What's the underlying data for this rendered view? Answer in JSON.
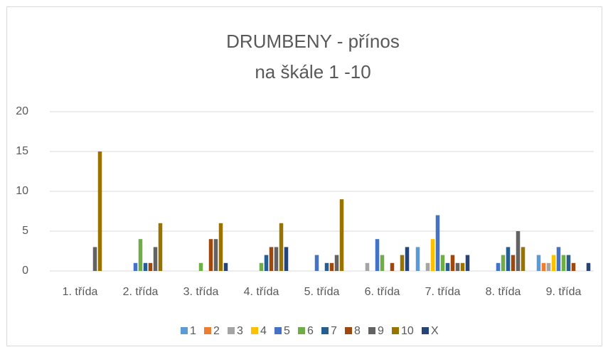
{
  "chart_data": {
    "type": "bar",
    "title": "DRUMBENY - přínos",
    "subtitle": "na škále 1 -10",
    "categories": [
      "1. třída",
      "2. třída",
      "3. třída",
      "4. třída",
      "5. třída",
      "6. třída",
      "7. třída",
      "8. třída",
      "9. třída"
    ],
    "series": [
      {
        "name": "1",
        "color": "#5b9bd5",
        "values": [
          0,
          0,
          0,
          0,
          0,
          0,
          3,
          0,
          2
        ]
      },
      {
        "name": "2",
        "color": "#ed7d31",
        "values": [
          0,
          0,
          0,
          0,
          0,
          0,
          0,
          0,
          1
        ]
      },
      {
        "name": "3",
        "color": "#a5a5a5",
        "values": [
          0,
          0,
          0,
          0,
          0,
          1,
          1,
          0,
          1
        ]
      },
      {
        "name": "4",
        "color": "#ffc000",
        "values": [
          0,
          0,
          0,
          0,
          0,
          0,
          4,
          0,
          2
        ]
      },
      {
        "name": "5",
        "color": "#4472c4",
        "values": [
          0,
          1,
          0,
          0,
          2,
          4,
          7,
          1,
          3
        ]
      },
      {
        "name": "6",
        "color": "#70ad47",
        "values": [
          0,
          4,
          1,
          1,
          0,
          2,
          2,
          2,
          2
        ]
      },
      {
        "name": "7",
        "color": "#255e91",
        "values": [
          0,
          1,
          0,
          2,
          1,
          0,
          1,
          3,
          2
        ]
      },
      {
        "name": "8",
        "color": "#9e480e",
        "values": [
          0,
          1,
          4,
          3,
          1,
          1,
          2,
          2,
          1
        ]
      },
      {
        "name": "9",
        "color": "#636363",
        "values": [
          3,
          3,
          4,
          3,
          2,
          0,
          1,
          5,
          0
        ]
      },
      {
        "name": "10",
        "color": "#997300",
        "values": [
          15,
          6,
          6,
          6,
          9,
          2,
          1,
          3,
          0
        ]
      },
      {
        "name": "X",
        "color": "#264478",
        "values": [
          0,
          0,
          1,
          3,
          0,
          3,
          2,
          0,
          1
        ]
      }
    ],
    "ylim": [
      0,
      20
    ],
    "yticks": [
      0,
      5,
      10,
      15,
      20
    ],
    "grid": true,
    "legend": "bottom"
  }
}
